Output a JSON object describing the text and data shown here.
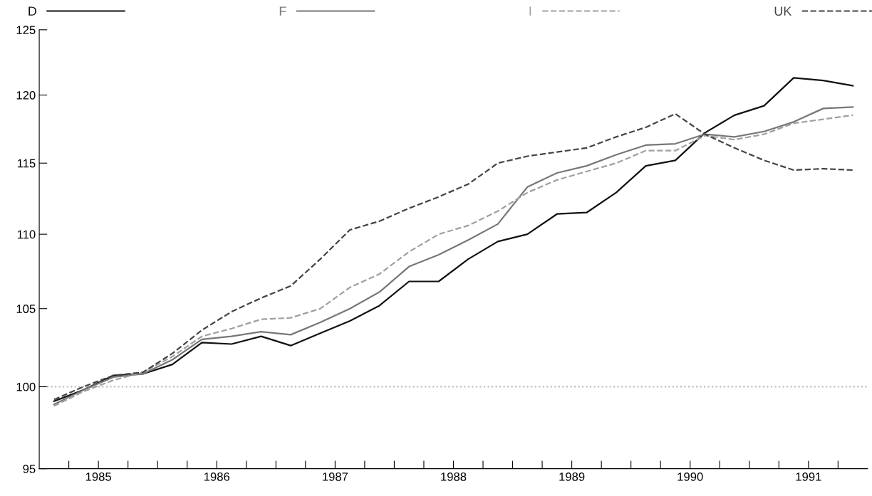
{
  "chart_data": {
    "type": "line",
    "x": [
      1985.125,
      1985.375,
      1985.625,
      1985.875,
      1986.125,
      1986.375,
      1986.625,
      1986.875,
      1987.125,
      1987.375,
      1987.625,
      1987.875,
      1988.125,
      1988.375,
      1988.625,
      1988.875,
      1989.125,
      1989.375,
      1989.625,
      1989.875,
      1990.125,
      1990.375,
      1990.625,
      1990.875,
      1991.125,
      1991.375,
      1991.625,
      1991.875
    ],
    "series": [
      {
        "name": "D",
        "color": "#111111",
        "line_style": "solid",
        "values": [
          99.1,
          99.8,
          100.7,
          100.8,
          101.4,
          102.8,
          102.7,
          103.2,
          102.6,
          103.4,
          104.2,
          105.2,
          106.8,
          106.8,
          108.3,
          109.5,
          110.0,
          111.4,
          111.5,
          112.9,
          114.8,
          115.2,
          117.2,
          118.5,
          119.2,
          121.3,
          121.1,
          120.7
        ]
      },
      {
        "name": "F",
        "color": "#777777",
        "line_style": "solid",
        "values": [
          98.9,
          99.8,
          100.6,
          100.8,
          101.7,
          103.0,
          103.2,
          103.5,
          103.3,
          104.1,
          105.0,
          106.1,
          107.8,
          108.6,
          109.6,
          110.7,
          113.3,
          114.3,
          114.8,
          115.6,
          116.3,
          116.4,
          117.1,
          116.9,
          117.3,
          118.0,
          119.0,
          119.1
        ]
      },
      {
        "name": "I",
        "color": "#a0a0a0",
        "line_style": "dashed",
        "values": [
          98.8,
          99.7,
          100.4,
          100.9,
          101.9,
          103.2,
          103.7,
          104.3,
          104.4,
          105.0,
          106.4,
          107.3,
          108.8,
          110.0,
          110.6,
          111.6,
          112.9,
          113.8,
          114.4,
          115.0,
          115.9,
          115.9,
          117.0,
          116.7,
          117.1,
          117.9,
          118.2,
          118.5
        ]
      },
      {
        "name": "UK",
        "color": "#444444",
        "line_style": "dashed",
        "values": [
          99.2,
          100.0,
          100.7,
          100.9,
          102.1,
          103.6,
          104.8,
          105.7,
          106.5,
          108.3,
          110.3,
          110.9,
          111.8,
          112.6,
          113.5,
          115.0,
          115.5,
          115.8,
          116.1,
          116.9,
          117.6,
          118.6,
          117.1,
          116.1,
          115.2,
          114.5,
          114.6,
          114.5
        ]
      }
    ],
    "log": true,
    "ylim": [
      95,
      125
    ],
    "yticks": [
      95,
      100,
      105,
      110,
      115,
      120,
      125
    ],
    "xlim": [
      1985,
      1992
    ],
    "xticks": [
      {
        "value": 1985.25,
        "label": null
      },
      {
        "value": 1985.5,
        "label": "1985"
      },
      {
        "value": 1985.75,
        "label": null
      },
      {
        "value": 1986,
        "label": null
      },
      {
        "value": 1986.25,
        "label": null
      },
      {
        "value": 1986.5,
        "label": "1986"
      },
      {
        "value": 1986.75,
        "label": null
      },
      {
        "value": 1987,
        "label": null
      },
      {
        "value": 1987.25,
        "label": null
      },
      {
        "value": 1987.5,
        "label": "1987"
      },
      {
        "value": 1987.75,
        "label": null
      },
      {
        "value": 1988,
        "label": null
      },
      {
        "value": 1988.25,
        "label": null
      },
      {
        "value": 1988.5,
        "label": "1988"
      },
      {
        "value": 1988.75,
        "label": null
      },
      {
        "value": 1989,
        "label": null
      },
      {
        "value": 1989.25,
        "label": null
      },
      {
        "value": 1989.5,
        "label": "1989"
      },
      {
        "value": 1989.75,
        "label": null
      },
      {
        "value": 1990,
        "label": null
      },
      {
        "value": 1990.25,
        "label": null
      },
      {
        "value": 1990.5,
        "label": "1990"
      },
      {
        "value": 1990.75,
        "label": null
      },
      {
        "value": 1991,
        "label": null
      },
      {
        "value": 1991.25,
        "label": null
      },
      {
        "value": 1991.5,
        "label": "1991"
      },
      {
        "value": 1991.75,
        "label": null
      }
    ],
    "ref_lines": [
      {
        "axis": "y",
        "value": 100,
        "color": "#bbbbbb",
        "line_style": "dotted"
      }
    ],
    "legend": "top",
    "grid": false,
    "marker": "none"
  }
}
